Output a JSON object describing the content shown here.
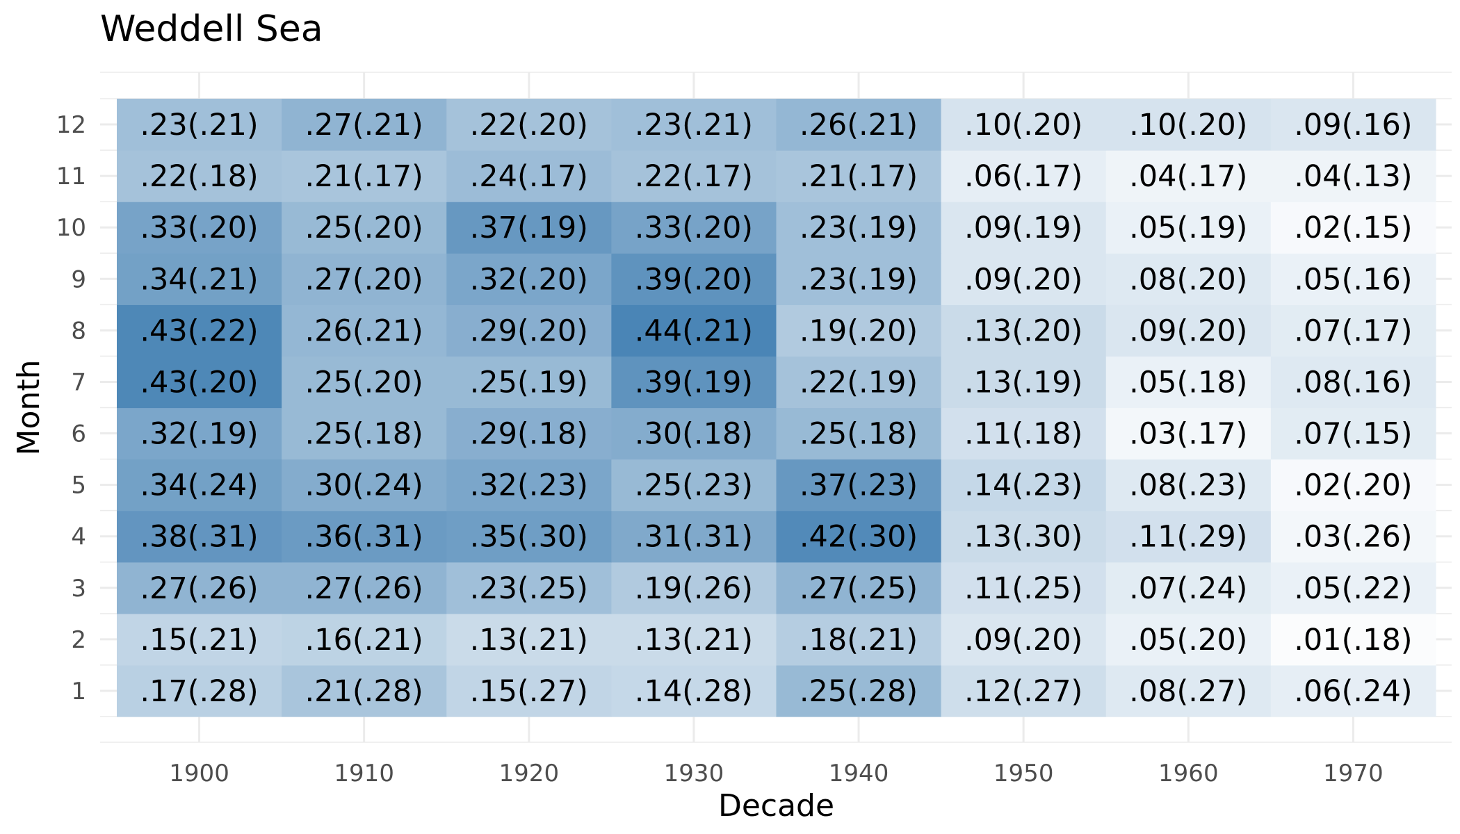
{
  "chart_data": {
    "type": "heatmap",
    "title": "Weddell Sea",
    "xlabel": "Decade",
    "ylabel": "Month",
    "x_categories": [
      "1900",
      "1910",
      "1920",
      "1930",
      "1940",
      "1950",
      "1960",
      "1970"
    ],
    "y_categories": [
      "1",
      "2",
      "3",
      "4",
      "5",
      "6",
      "7",
      "8",
      "9",
      "10",
      "11",
      "12"
    ],
    "values": [
      [
        0.17,
        0.21,
        0.15,
        0.14,
        0.25,
        0.12,
        0.08,
        0.06
      ],
      [
        0.15,
        0.16,
        0.13,
        0.13,
        0.18,
        0.09,
        0.05,
        0.01
      ],
      [
        0.27,
        0.27,
        0.23,
        0.19,
        0.27,
        0.11,
        0.07,
        0.05
      ],
      [
        0.38,
        0.36,
        0.35,
        0.31,
        0.42,
        0.13,
        0.11,
        0.03
      ],
      [
        0.34,
        0.3,
        0.32,
        0.25,
        0.37,
        0.14,
        0.08,
        0.02
      ],
      [
        0.32,
        0.25,
        0.29,
        0.3,
        0.25,
        0.11,
        0.03,
        0.07
      ],
      [
        0.43,
        0.25,
        0.25,
        0.39,
        0.22,
        0.13,
        0.05,
        0.08
      ],
      [
        0.43,
        0.26,
        0.29,
        0.44,
        0.19,
        0.13,
        0.09,
        0.07
      ],
      [
        0.34,
        0.27,
        0.32,
        0.39,
        0.23,
        0.09,
        0.08,
        0.05
      ],
      [
        0.33,
        0.25,
        0.37,
        0.33,
        0.23,
        0.09,
        0.05,
        0.02
      ],
      [
        0.22,
        0.21,
        0.24,
        0.22,
        0.21,
        0.06,
        0.04,
        0.04
      ],
      [
        0.23,
        0.27,
        0.22,
        0.23,
        0.26,
        0.1,
        0.1,
        0.09
      ]
    ],
    "labels": [
      [
        ".17(.28)",
        ".21(.28)",
        ".15(.27)",
        ".14(.28)",
        ".25(.28)",
        ".12(.27)",
        ".08(.27)",
        ".06(.24)"
      ],
      [
        ".15(.21)",
        ".16(.21)",
        ".13(.21)",
        ".13(.21)",
        ".18(.21)",
        ".09(.20)",
        ".05(.20)",
        ".01(.18)"
      ],
      [
        ".27(.26)",
        ".27(.26)",
        ".23(.25)",
        ".19(.26)",
        ".27(.25)",
        ".11(.25)",
        ".07(.24)",
        ".05(.22)"
      ],
      [
        ".38(.31)",
        ".36(.31)",
        ".35(.30)",
        ".31(.31)",
        ".42(.30)",
        ".13(.30)",
        ".11(.29)",
        ".03(.26)"
      ],
      [
        ".34(.24)",
        ".30(.24)",
        ".32(.23)",
        ".25(.23)",
        ".37(.23)",
        ".14(.23)",
        ".08(.23)",
        ".02(.20)"
      ],
      [
        ".32(.19)",
        ".25(.18)",
        ".29(.18)",
        ".30(.18)",
        ".25(.18)",
        ".11(.18)",
        ".03(.17)",
        ".07(.15)"
      ],
      [
        ".43(.20)",
        ".25(.20)",
        ".25(.19)",
        ".39(.19)",
        ".22(.19)",
        ".13(.19)",
        ".05(.18)",
        ".08(.16)"
      ],
      [
        ".43(.22)",
        ".26(.21)",
        ".29(.20)",
        ".44(.21)",
        ".19(.20)",
        ".13(.20)",
        ".09(.20)",
        ".07(.17)"
      ],
      [
        ".34(.21)",
        ".27(.20)",
        ".32(.20)",
        ".39(.20)",
        ".23(.19)",
        ".09(.20)",
        ".08(.20)",
        ".05(.16)"
      ],
      [
        ".33(.20)",
        ".25(.20)",
        ".37(.19)",
        ".33(.20)",
        ".23(.19)",
        ".09(.19)",
        ".05(.19)",
        ".02(.15)"
      ],
      [
        ".22(.18)",
        ".21(.17)",
        ".24(.17)",
        ".22(.17)",
        ".21(.17)",
        ".06(.17)",
        ".04(.17)",
        ".04(.13)"
      ],
      [
        ".23(.21)",
        ".27(.21)",
        ".22(.20)",
        ".23(.21)",
        ".26(.21)",
        ".10(.20)",
        ".10(.20)",
        ".09(.16)"
      ]
    ],
    "color_scale": {
      "low_color": "#ffffff",
      "high_color": "#4682b4",
      "value_range": [
        0,
        0.45
      ]
    },
    "grid": true,
    "legend": "none"
  }
}
